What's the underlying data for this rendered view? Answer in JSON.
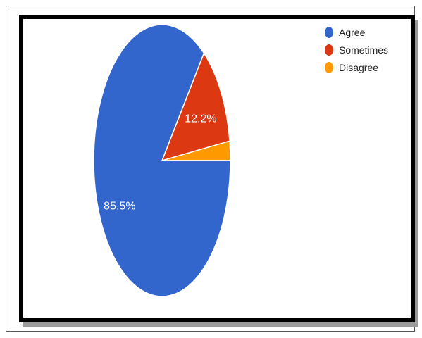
{
  "chart_data": {
    "type": "pie",
    "title": "",
    "slices": [
      {
        "label": "Agree",
        "value": 85.5,
        "display": "85.5%",
        "color": "#3366cc"
      },
      {
        "label": "Sometimes",
        "value": 12.2,
        "display": "12.2%",
        "color": "#dc3912"
      },
      {
        "label": "Disagree",
        "value": 2.3,
        "display": "",
        "color": "#ff9900"
      }
    ],
    "legend_position": "top-right"
  }
}
